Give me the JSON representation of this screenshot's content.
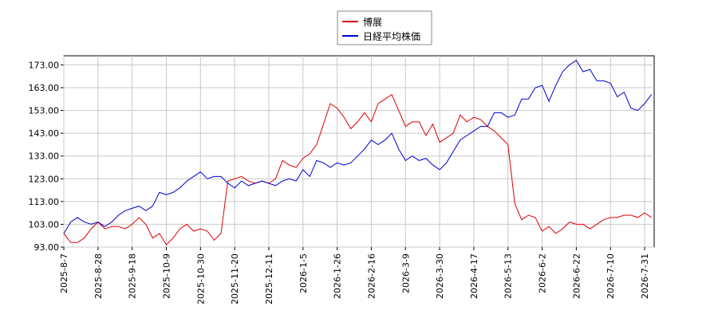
{
  "chart_data": {
    "type": "line",
    "categories": [
      "2025-8-7",
      null,
      null,
      null,
      null,
      "2025-8-28",
      null,
      null,
      null,
      null,
      "2025-9-18",
      null,
      null,
      null,
      null,
      "2025-10-9",
      null,
      null,
      null,
      null,
      "2025-10-30",
      null,
      null,
      null,
      null,
      "2025-11-20",
      null,
      null,
      null,
      null,
      "2025-12-11",
      null,
      null,
      null,
      null,
      "2026-1-5",
      null,
      null,
      null,
      null,
      "2026-1-26",
      null,
      null,
      null,
      null,
      "2026-2-16",
      null,
      null,
      null,
      null,
      "2026-3-9",
      null,
      null,
      null,
      null,
      "2026-3-30",
      null,
      null,
      null,
      null,
      "2026-4-17",
      null,
      null,
      null,
      null,
      "2026-5-13",
      null,
      null,
      null,
      null,
      "2026-6-2",
      null,
      null,
      null,
      null,
      "2026-6-22",
      null,
      null,
      null,
      null,
      "2026-7-10",
      null,
      null,
      null,
      null,
      "2026-7-31",
      null
    ],
    "series": [
      {
        "name": "博展",
        "color": "#dd0000",
        "values": [
          99,
          95,
          95,
          97,
          101,
          104,
          101,
          102,
          102,
          101,
          103,
          106,
          103,
          97,
          99,
          94,
          97,
          101,
          103,
          100,
          101,
          100,
          96,
          99,
          122,
          123,
          124,
          122,
          121,
          122,
          121,
          123,
          131,
          129,
          128,
          132,
          134,
          138,
          147,
          156,
          154,
          150,
          145,
          148,
          152,
          148,
          156,
          158,
          160,
          153,
          146,
          148,
          148,
          142,
          147,
          139,
          141,
          143,
          151,
          148,
          150,
          149,
          146,
          144,
          141,
          138,
          112,
          105,
          107,
          106,
          100,
          102,
          99,
          101,
          104,
          103,
          103,
          101,
          103,
          105,
          106,
          106,
          107,
          107,
          106,
          108,
          106
        ]
      },
      {
        "name": "日経平均株価",
        "color": "#0000cc",
        "values": [
          99,
          104,
          106,
          104,
          103,
          104,
          102,
          104,
          107,
          109,
          110,
          111,
          109,
          111,
          117,
          116,
          117,
          119,
          122,
          124,
          126,
          123,
          124,
          124,
          121,
          119,
          122,
          120,
          121,
          122,
          121,
          120,
          122,
          123,
          122,
          127,
          124,
          131,
          130,
          128,
          130,
          129,
          130,
          133,
          136,
          140,
          138,
          140,
          143,
          136,
          131,
          133,
          131,
          132,
          129,
          127,
          130,
          135,
          140,
          142,
          144,
          146,
          146,
          152,
          152,
          150,
          151,
          158,
          158,
          163,
          164,
          157,
          164,
          170,
          173,
          175,
          170,
          171,
          166,
          166,
          165,
          159,
          161,
          154,
          153,
          156,
          160
        ]
      }
    ],
    "ylim": [
      93,
      177
    ],
    "yticks": [
      {
        "value": 93,
        "label": "93.00"
      },
      {
        "value": 103,
        "label": "103.00"
      },
      {
        "value": 113,
        "label": "113.00"
      },
      {
        "value": 123,
        "label": "123.00"
      },
      {
        "value": 133,
        "label": "133.00"
      },
      {
        "value": 143,
        "label": "143.00"
      },
      {
        "value": 153,
        "label": "153.00"
      },
      {
        "value": 163,
        "label": "163.00"
      },
      {
        "value": 173,
        "label": "173.00"
      }
    ],
    "grid": true
  }
}
